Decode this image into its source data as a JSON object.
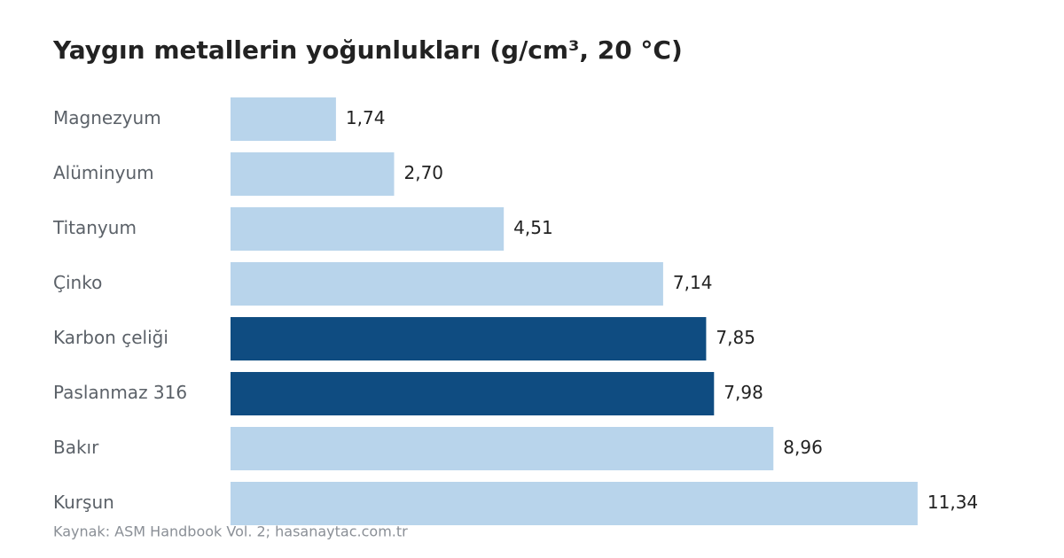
{
  "chart_data": {
    "type": "hbar",
    "title": "Yaygın metallerin yoğunlukları (g/cm³, 20 °C)",
    "categories": [
      "Magnezyum",
      "Alüminyum",
      "Titanyum",
      "Çinko",
      "Karbon çeliği",
      "Paslanmaz 316",
      "Bakır",
      "Kurşun"
    ],
    "values": [
      1.74,
      2.7,
      4.51,
      7.14,
      7.85,
      7.98,
      8.96,
      11.34
    ],
    "value_labels": [
      "1,74",
      "2,70",
      "4,51",
      "7,14",
      "7,85",
      "7,98",
      "8,96",
      "11,34"
    ],
    "colors": [
      "#b8d4eb",
      "#b8d4eb",
      "#b8d4eb",
      "#b8d4eb",
      "#0f4c81",
      "#0f4c81",
      "#b8d4eb",
      "#b8d4eb"
    ],
    "xlim": [
      0,
      12
    ],
    "source": "Kaynak: ASM Handbook Vol. 2; hasanaytac.com.tr"
  }
}
